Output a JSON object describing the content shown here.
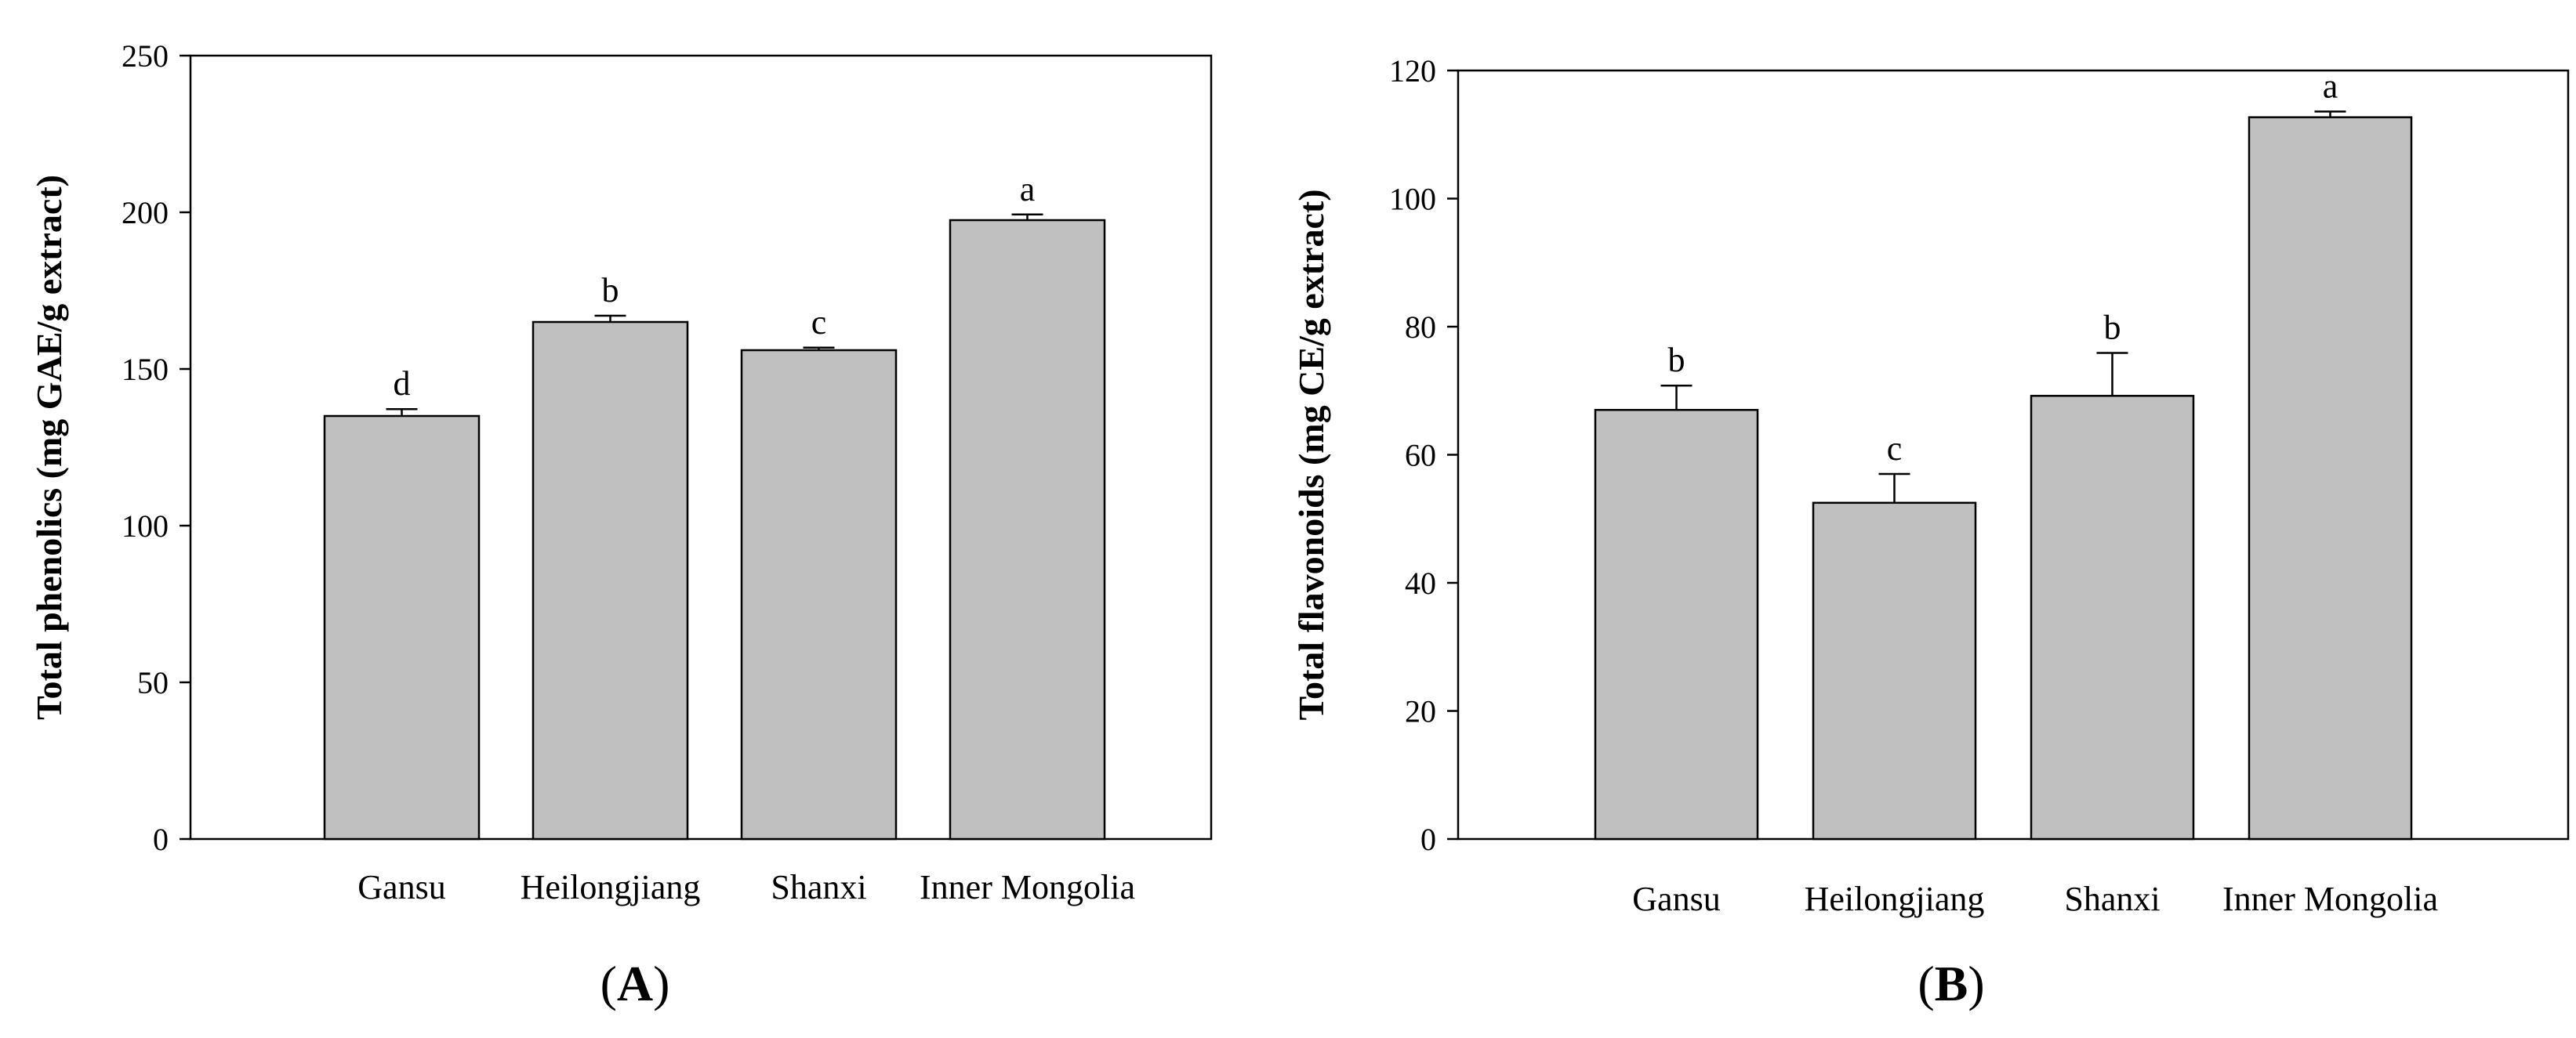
{
  "chart_data": [
    {
      "type": "bar",
      "panel_label": "A",
      "ylabel": "Total phenolics (mg GAE/g extract)",
      "categories": [
        "Gansu",
        "Heilongjiang",
        "Shanxi",
        "Inner Mongolia"
      ],
      "values": [
        135,
        165,
        156,
        197.5
      ],
      "errors": [
        2.2,
        2.0,
        0.8,
        1.8
      ],
      "significance": [
        "d",
        "b",
        "c",
        "a"
      ],
      "ylim": [
        0,
        250
      ],
      "yticks": [
        0,
        50,
        100,
        150,
        200,
        250
      ],
      "bar_color": "#c0c0c0",
      "grid": false
    },
    {
      "type": "bar",
      "panel_label": "B",
      "ylabel": "Total flavonoids (mg CE/g extract)",
      "categories": [
        "Gansu",
        "Heilongjiang",
        "Shanxi",
        "Inner Mongolia"
      ],
      "values": [
        67,
        52.5,
        69.2,
        112.7
      ],
      "errors": [
        3.8,
        4.5,
        6.7,
        0.9
      ],
      "significance": [
        "b",
        "c",
        "b",
        "a"
      ],
      "ylim": [
        0,
        120
      ],
      "yticks": [
        0,
        20,
        40,
        60,
        80,
        100,
        120
      ],
      "bar_color": "#c0c0c0",
      "grid": false
    }
  ]
}
